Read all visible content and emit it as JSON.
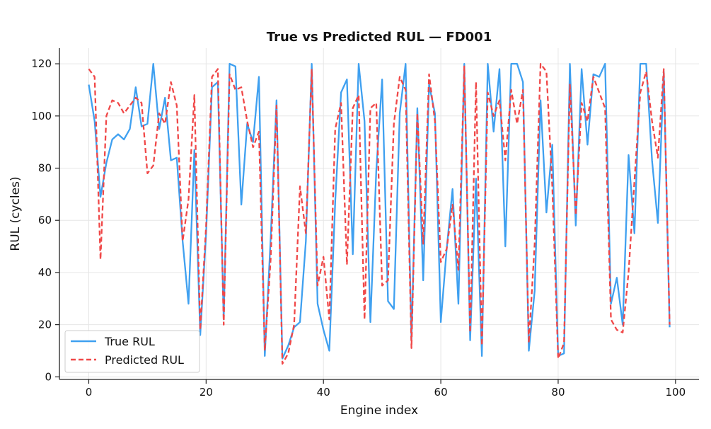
{
  "chart_data": {
    "type": "line",
    "title": "True vs Predicted RUL — FD001",
    "xlabel": "Engine index",
    "ylabel": "RUL (cycles)",
    "xlim": [
      -5,
      104
    ],
    "ylim": [
      -1,
      126
    ],
    "xticks": [
      0,
      20,
      40,
      60,
      80,
      100
    ],
    "yticks": [
      0,
      20,
      40,
      60,
      80,
      100,
      120
    ],
    "grid": true,
    "legend": "bottom-left",
    "series": [
      {
        "name": "True RUL",
        "color": "#3fa0f0",
        "style": "solid",
        "values": [
          112,
          98,
          69,
          82,
          91,
          93,
          91,
          95,
          111,
          96,
          97,
          120,
          95,
          107,
          83,
          84,
          52,
          28,
          87,
          16,
          55,
          111,
          113,
          22,
          120,
          119,
          66,
          97,
          90,
          115,
          8,
          53,
          106,
          7,
          12,
          19,
          21,
          52,
          120,
          28,
          18,
          10,
          67,
          109,
          114,
          47,
          120,
          98,
          21,
          79,
          114,
          29,
          26,
          101,
          120,
          14,
          103,
          37,
          112,
          101,
          21,
          49,
          72,
          28,
          120,
          14,
          76,
          8,
          120,
          94,
          118,
          50,
          120,
          120,
          113,
          10,
          33,
          106,
          63,
          89,
          8,
          9,
          120,
          58,
          118,
          89,
          116,
          115,
          120,
          28,
          38,
          20,
          85,
          55,
          120,
          120,
          83,
          59,
          117,
          19
        ]
      },
      {
        "name": "Predicted RUL",
        "color": "#f04848",
        "style": "dashed",
        "values": [
          118,
          115,
          45,
          100,
          106,
          105,
          101,
          104,
          107,
          105,
          78,
          81,
          101,
          97,
          113,
          104,
          52,
          68,
          108,
          18,
          58,
          115,
          118,
          20,
          116,
          110,
          111,
          98,
          88,
          94,
          10,
          45,
          104,
          5,
          9,
          20,
          73,
          55,
          118,
          35,
          46,
          22,
          95,
          105,
          43,
          103,
          108,
          22,
          103,
          105,
          35,
          37,
          97,
          115,
          110,
          11,
          101,
          51,
          116,
          98,
          44,
          49,
          66,
          41,
          119,
          17,
          113,
          12,
          109,
          100,
          106,
          83,
          110,
          97,
          110,
          13,
          51,
          120,
          117,
          73,
          7,
          13,
          112,
          62,
          105,
          98,
          115,
          109,
          103,
          22,
          18,
          17,
          40,
          75,
          109,
          117,
          98,
          84,
          118,
          20
        ]
      }
    ]
  }
}
